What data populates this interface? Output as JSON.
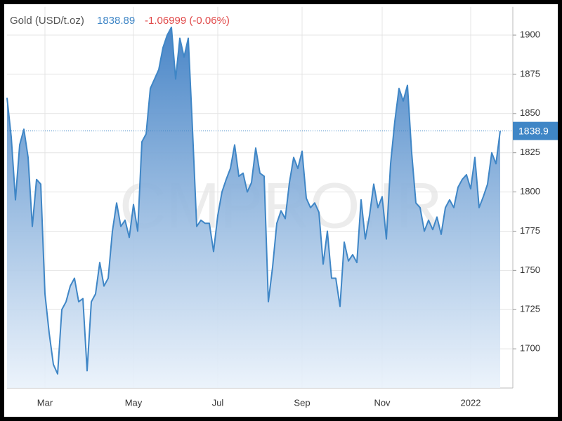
{
  "chart_data": {
    "type": "area",
    "title": "Gold (USD/t.oz)",
    "current": {
      "value": 1838.89,
      "label": "1838.9"
    },
    "change": "-1.06999 (-0.06%)",
    "watermark": "CMPRO.IR",
    "color": "#3f86c6",
    "categories": [
      null,
      null,
      null,
      null,
      null,
      null,
      null,
      null,
      null,
      "Mar",
      null,
      null,
      null,
      null,
      null,
      null,
      null,
      null,
      null,
      null,
      null,
      null,
      null,
      null,
      null,
      null,
      null,
      null,
      null,
      null,
      "May",
      null,
      null,
      null,
      null,
      null,
      null,
      null,
      null,
      null,
      null,
      null,
      null,
      null,
      null,
      null,
      null,
      null,
      null,
      null,
      "Jul",
      null,
      null,
      null,
      null,
      null,
      null,
      null,
      null,
      null,
      null,
      null,
      null,
      null,
      null,
      null,
      null,
      null,
      null,
      null,
      "Sep",
      null,
      null,
      null,
      null,
      null,
      null,
      null,
      null,
      null,
      null,
      null,
      null,
      null,
      null,
      null,
      null,
      null,
      null,
      "Nov",
      null,
      null,
      null,
      null,
      null,
      null,
      null,
      null,
      null,
      null,
      null,
      null,
      null,
      null,
      null,
      null,
      null,
      null,
      null,
      null,
      "2022",
      null,
      null,
      null,
      null,
      null,
      null,
      null
    ],
    "values": [
      1860,
      1835,
      1795,
      1830,
      1840,
      1822,
      1778,
      1808,
      1805,
      1735,
      1710,
      1690,
      1684,
      1725,
      1730,
      1740,
      1745,
      1730,
      1732,
      1686,
      1730,
      1735,
      1755,
      1740,
      1745,
      1775,
      1793,
      1778,
      1782,
      1771,
      1792,
      1775,
      1832,
      1837,
      1866,
      1872,
      1878,
      1892,
      1900,
      1905,
      1872,
      1898,
      1886,
      1898,
      1840,
      1778,
      1782,
      1780,
      1780,
      1762,
      1785,
      1800,
      1808,
      1815,
      1830,
      1810,
      1812,
      1800,
      1806,
      1828,
      1812,
      1810,
      1730,
      1752,
      1780,
      1788,
      1783,
      1806,
      1822,
      1815,
      1826,
      1796,
      1790,
      1793,
      1787,
      1754,
      1775,
      1745,
      1745,
      1727,
      1768,
      1756,
      1760,
      1755,
      1795,
      1770,
      1785,
      1805,
      1790,
      1797,
      1770,
      1818,
      1845,
      1866,
      1858,
      1868,
      1825,
      1793,
      1790,
      1775,
      1782,
      1776,
      1784,
      1773,
      1790,
      1795,
      1790,
      1803,
      1808,
      1811,
      1802,
      1822,
      1790,
      1797,
      1805,
      1825,
      1818,
      1838.89
    ],
    "ylim": [
      1675,
      1918
    ],
    "yticks": [
      1700,
      1725,
      1750,
      1775,
      1800,
      1825,
      1850,
      1875,
      1900
    ],
    "grid": true
  }
}
